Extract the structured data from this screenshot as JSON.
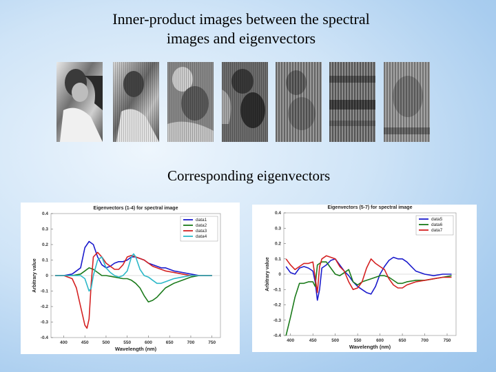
{
  "slide": {
    "title": "Inner-product images between the spectral images and eigenvectors",
    "subtitle": "Corresponding eigenvectors"
  },
  "colors": {
    "data1": "#1a1acc",
    "data2": "#1a7a1a",
    "data3": "#d42020",
    "data4": "#2cb8c8",
    "data5": "#1a1acc",
    "data6": "#1a7a1a",
    "data7": "#d42020"
  },
  "chart_data": [
    {
      "type": "line",
      "title": "Eigenvectors (1-4) for spectral image",
      "xlabel": "Wavelength (nm)",
      "ylabel": "Arbitrary value",
      "xlim": [
        370,
        770
      ],
      "ylim": [
        -0.4,
        0.4
      ],
      "xticks": [
        "400",
        "450",
        "500",
        "550",
        "600",
        "650",
        "700",
        "750"
      ],
      "yticks": [
        "0.4",
        "0.3",
        "0.2",
        "0.1",
        "0",
        "-0.1",
        "-0.2",
        "-0.3",
        "-0.4"
      ],
      "legend_position": "top-right",
      "grid": false,
      "series": [
        {
          "name": "data1",
          "x": [
            380,
            400,
            420,
            440,
            450,
            460,
            470,
            480,
            490,
            500,
            510,
            520,
            530,
            540,
            550,
            560,
            570,
            580,
            590,
            600,
            610,
            620,
            630,
            640,
            650,
            660,
            680,
            700,
            720,
            750
          ],
          "y": [
            0,
            0,
            0.01,
            0.05,
            0.18,
            0.22,
            0.2,
            0.12,
            0.07,
            0.05,
            0.06,
            0.08,
            0.09,
            0.09,
            0.1,
            0.12,
            0.12,
            0.11,
            0.1,
            0.08,
            0.07,
            0.06,
            0.05,
            0.05,
            0.04,
            0.03,
            0.02,
            0.01,
            0,
            0
          ]
        },
        {
          "name": "data2",
          "x": [
            380,
            400,
            420,
            440,
            450,
            460,
            470,
            480,
            490,
            500,
            520,
            540,
            550,
            560,
            570,
            580,
            590,
            600,
            610,
            620,
            630,
            640,
            660,
            680,
            700,
            720,
            750
          ],
          "y": [
            0,
            0,
            0,
            0.01,
            0.03,
            0.05,
            0.04,
            0.02,
            0,
            0,
            -0.01,
            -0.02,
            -0.02,
            -0.03,
            -0.05,
            -0.08,
            -0.13,
            -0.17,
            -0.16,
            -0.14,
            -0.11,
            -0.08,
            -0.05,
            -0.03,
            -0.01,
            0,
            0
          ]
        },
        {
          "name": "data3",
          "x": [
            380,
            400,
            420,
            430,
            440,
            450,
            455,
            460,
            465,
            470,
            480,
            490,
            500,
            510,
            520,
            530,
            540,
            550,
            560,
            570,
            580,
            590,
            600,
            610,
            620,
            640,
            660,
            680,
            700,
            720,
            750
          ],
          "y": [
            0,
            0,
            -0.02,
            -0.08,
            -0.2,
            -0.32,
            -0.34,
            -0.28,
            -0.05,
            0.12,
            0.15,
            0.12,
            0.08,
            0.06,
            0.04,
            0.04,
            0.07,
            0.12,
            0.13,
            0.12,
            0.11,
            0.1,
            0.08,
            0.06,
            0.05,
            0.03,
            0.02,
            0.01,
            0,
            0,
            0
          ]
        },
        {
          "name": "data4",
          "x": [
            380,
            400,
            420,
            440,
            450,
            460,
            465,
            470,
            480,
            490,
            500,
            510,
            520,
            530,
            540,
            550,
            560,
            565,
            570,
            580,
            590,
            600,
            610,
            620,
            630,
            640,
            660,
            680,
            700,
            720,
            750
          ],
          "y": [
            0,
            0,
            0,
            0,
            -0.02,
            -0.1,
            -0.08,
            0,
            0.1,
            0.12,
            0.05,
            0.02,
            0,
            -0.01,
            0,
            0.03,
            0.12,
            0.14,
            0.12,
            0.04,
            0,
            -0.01,
            -0.03,
            -0.05,
            -0.05,
            -0.04,
            -0.02,
            -0.01,
            0,
            0,
            0
          ]
        }
      ]
    },
    {
      "type": "line",
      "title": "Eigenvectors (5-7) for spectral image",
      "xlabel": "Wavelength (nm)",
      "ylabel": "Arbitrary value",
      "xlim": [
        385,
        770
      ],
      "ylim": [
        -0.4,
        0.4
      ],
      "xticks": [
        "400",
        "450",
        "500",
        "550",
        "600",
        "650",
        "700",
        "750"
      ],
      "yticks": [
        "0.4",
        "0.3",
        "0.2",
        "0.1",
        "0",
        "-0.1",
        "-0.2",
        "-0.3",
        "-0.4"
      ],
      "legend_position": "top-right",
      "grid": false,
      "series": [
        {
          "name": "data5",
          "x": [
            390,
            400,
            410,
            420,
            430,
            440,
            450,
            455,
            460,
            465,
            470,
            480,
            490,
            500,
            510,
            520,
            530,
            540,
            550,
            560,
            570,
            580,
            590,
            600,
            610,
            620,
            630,
            640,
            650,
            660,
            670,
            680,
            690,
            700,
            720,
            740,
            760
          ],
          "y": [
            0.05,
            0.01,
            0.0,
            0.04,
            0.05,
            0.04,
            0.02,
            -0.05,
            -0.17,
            -0.1,
            0.04,
            0.06,
            0.09,
            0.1,
            0.06,
            0.02,
            -0.01,
            -0.05,
            -0.08,
            -0.1,
            -0.12,
            -0.13,
            -0.08,
            0,
            0.05,
            0.09,
            0.11,
            0.1,
            0.1,
            0.08,
            0.05,
            0.02,
            0.01,
            0,
            -0.01,
            0,
            0
          ]
        },
        {
          "name": "data6",
          "x": [
            390,
            400,
            410,
            420,
            430,
            440,
            450,
            455,
            460,
            470,
            480,
            490,
            500,
            510,
            520,
            530,
            540,
            550,
            560,
            570,
            580,
            590,
            600,
            610,
            620,
            630,
            640,
            650,
            660,
            680,
            700,
            720,
            740,
            760
          ],
          "y": [
            -0.4,
            -0.28,
            -0.15,
            -0.06,
            -0.06,
            -0.05,
            -0.05,
            -0.08,
            0.06,
            0.08,
            0.08,
            0.04,
            0,
            -0.01,
            0.01,
            0.03,
            -0.05,
            -0.07,
            -0.05,
            -0.04,
            -0.03,
            -0.02,
            -0.01,
            -0.01,
            -0.02,
            -0.04,
            -0.06,
            -0.06,
            -0.05,
            -0.04,
            -0.04,
            -0.03,
            -0.02,
            -0.01
          ]
        },
        {
          "name": "data7",
          "x": [
            390,
            400,
            410,
            420,
            430,
            440,
            450,
            455,
            460,
            465,
            470,
            480,
            490,
            500,
            510,
            520,
            530,
            540,
            550,
            560,
            570,
            580,
            590,
            600,
            610,
            620,
            630,
            640,
            650,
            660,
            680,
            700,
            720,
            740,
            760
          ],
          "y": [
            0.1,
            0.06,
            0.03,
            0.05,
            0.07,
            0.07,
            0.08,
            -0.02,
            -0.12,
            0.05,
            0.1,
            0.12,
            0.11,
            0.1,
            0.05,
            0.02,
            -0.05,
            -0.1,
            -0.09,
            -0.05,
            0.04,
            0.1,
            0.07,
            0.05,
            0.03,
            -0.03,
            -0.07,
            -0.09,
            -0.09,
            -0.07,
            -0.05,
            -0.04,
            -0.03,
            -0.02,
            -0.02
          ]
        }
      ]
    }
  ]
}
